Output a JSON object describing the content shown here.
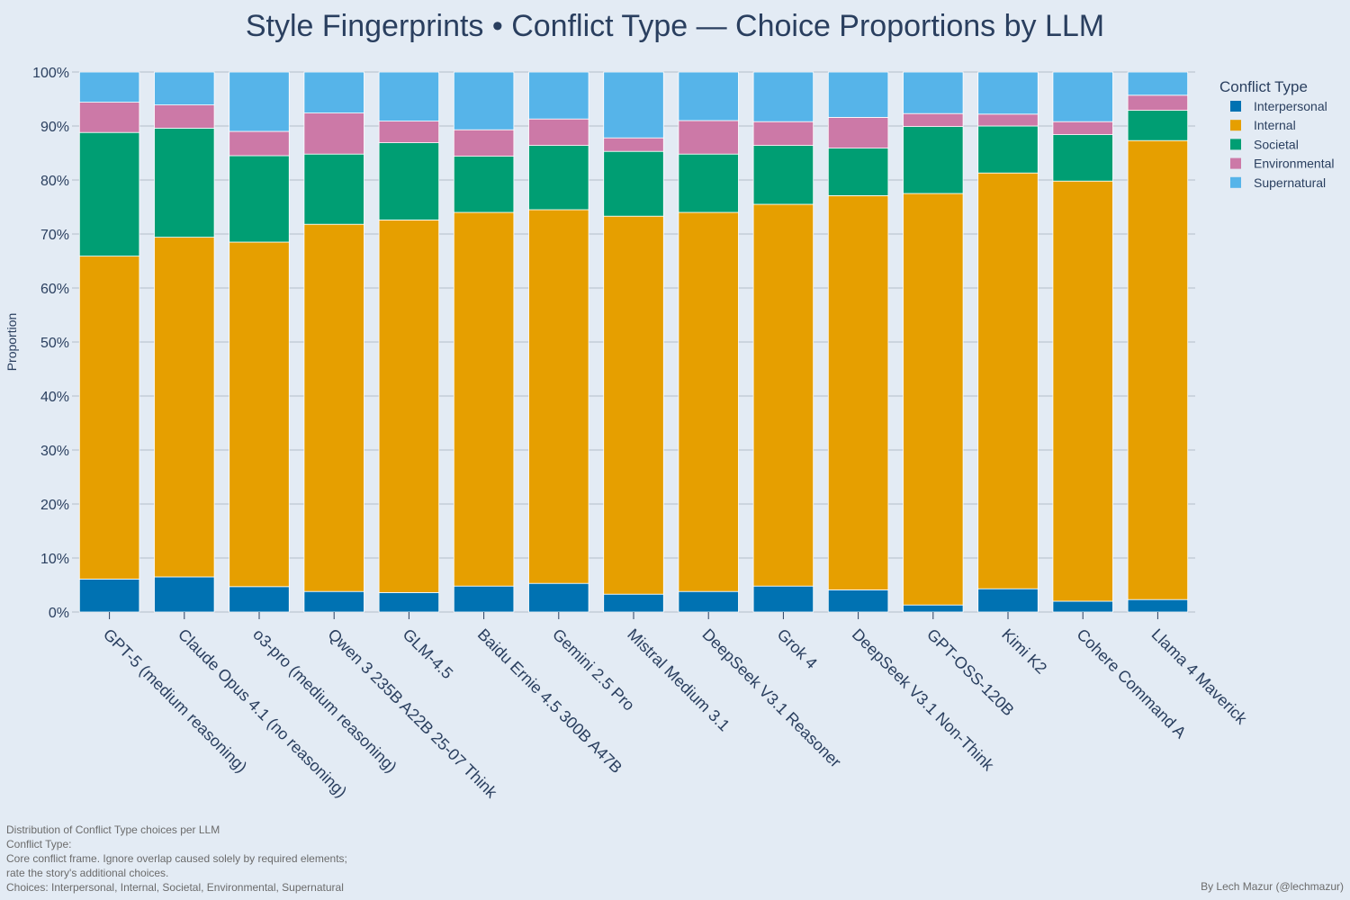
{
  "chart_data": {
    "type": "bar",
    "stacked": true,
    "title": "Style Fingerprints • Conflict Type — Choice Proportions by LLM",
    "ylabel": "Proportion",
    "xlabel": "",
    "ylim": [
      0,
      1
    ],
    "yticks": [
      0,
      0.1,
      0.2,
      0.3,
      0.4,
      0.5,
      0.6,
      0.7,
      0.8,
      0.9,
      1.0
    ],
    "ytick_labels": [
      "0%",
      "10%",
      "20%",
      "30%",
      "40%",
      "50%",
      "60%",
      "70%",
      "80%",
      "90%",
      "100%"
    ],
    "grid": true,
    "legend_title": "Conflict Type",
    "legend_position": "top-right",
    "categories": [
      "GPT-5 (medium reasoning)",
      "Claude Opus 4.1 (no reasoning)",
      "o3-pro (medium reasoning)",
      "Qwen 3 235B A22B 25-07 Think",
      "GLM-4.5",
      "Baidu Ernie 4.5 300B A47B",
      "Gemini 2.5 Pro",
      "Mistral Medium 3.1",
      "DeepSeek V3.1 Reasoner",
      "Grok 4",
      "DeepSeek V3.1 Non-Think",
      "GPT-OSS-120B",
      "Kimi K2",
      "Cohere Command A",
      "Llama 4 Maverick"
    ],
    "series": [
      {
        "name": "Interpersonal",
        "color": "#0072b2",
        "values": [
          0.061,
          0.065,
          0.047,
          0.038,
          0.036,
          0.048,
          0.053,
          0.033,
          0.038,
          0.048,
          0.041,
          0.013,
          0.043,
          0.02,
          0.023
        ]
      },
      {
        "name": "Internal",
        "color": "#e69f00",
        "values": [
          0.598,
          0.629,
          0.638,
          0.68,
          0.69,
          0.692,
          0.692,
          0.7,
          0.702,
          0.707,
          0.73,
          0.762,
          0.77,
          0.778,
          0.85
        ]
      },
      {
        "name": "Societal",
        "color": "#009e73",
        "values": [
          0.229,
          0.202,
          0.16,
          0.13,
          0.143,
          0.104,
          0.119,
          0.12,
          0.108,
          0.109,
          0.088,
          0.124,
          0.087,
          0.086,
          0.056
        ]
      },
      {
        "name": "Environmental",
        "color": "#cc79a7",
        "values": [
          0.056,
          0.043,
          0.045,
          0.076,
          0.04,
          0.049,
          0.049,
          0.025,
          0.062,
          0.044,
          0.057,
          0.024,
          0.022,
          0.024,
          0.028
        ]
      },
      {
        "name": "Supernatural",
        "color": "#56b4e9",
        "values": [
          0.056,
          0.061,
          0.11,
          0.076,
          0.091,
          0.107,
          0.087,
          0.122,
          0.09,
          0.092,
          0.084,
          0.077,
          0.078,
          0.092,
          0.043
        ]
      }
    ]
  },
  "footnote": {
    "lines": [
      "Distribution of Conflict Type choices per LLM",
      "Conflict Type:",
      "Core conflict frame. Ignore overlap caused solely by required elements;",
      "rate the story's additional choices.",
      "Choices: Interpersonal, Internal, Societal, Environmental, Supernatural"
    ]
  },
  "credit": "By Lech Mazur (@lechmazur)"
}
